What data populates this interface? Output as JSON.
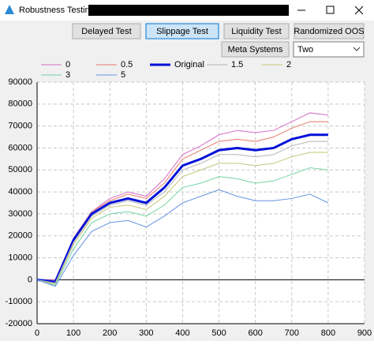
{
  "window": {
    "title": "Robustness Testing -"
  },
  "buttons": [
    "Delayed Test",
    "Slippage Test",
    "Liquidity Test",
    "Randomized OOS",
    "Meta Systems"
  ],
  "dropdown": {
    "value": "Two"
  },
  "chart_data": {
    "type": "line",
    "x": [
      0,
      50,
      100,
      150,
      200,
      250,
      300,
      350,
      400,
      450,
      500,
      550,
      600,
      650,
      700,
      750,
      800
    ],
    "series": [
      {
        "name": "0",
        "color": "#d46cc4",
        "values": [
          0,
          0,
          19000,
          31000,
          37000,
          40000,
          38000,
          46000,
          57000,
          61000,
          66000,
          68000,
          67000,
          68000,
          72000,
          76000,
          75000
        ]
      },
      {
        "name": "0.5",
        "color": "#e4786a",
        "values": [
          0,
          -500,
          18500,
          31000,
          36000,
          39000,
          37000,
          44000,
          55000,
          59000,
          63000,
          64000,
          63000,
          65000,
          69000,
          72000,
          72000
        ]
      },
      {
        "name": "Original",
        "color": "#0010d8",
        "values": [
          0,
          -1000,
          18000,
          30000,
          35000,
          37000,
          35000,
          42000,
          52000,
          55000,
          59000,
          60000,
          59000,
          60000,
          64000,
          66000,
          66000
        ]
      },
      {
        "name": "1.5",
        "color": "#b4b4b4",
        "values": [
          0,
          -1500,
          17000,
          29000,
          34000,
          36000,
          34000,
          40000,
          50000,
          53000,
          57000,
          57000,
          56000,
          57000,
          61000,
          63000,
          63000
        ]
      },
      {
        "name": "2",
        "color": "#c4c47a",
        "values": [
          0,
          -2000,
          16000,
          28000,
          33000,
          34000,
          32000,
          38000,
          47000,
          50000,
          53000,
          53000,
          52000,
          53000,
          56000,
          58000,
          58000
        ]
      },
      {
        "name": "3",
        "color": "#74d4a4",
        "values": [
          0,
          -2500,
          14000,
          26000,
          30000,
          31000,
          29000,
          34000,
          42000,
          44000,
          47000,
          46000,
          44000,
          45000,
          48000,
          51000,
          50000
        ]
      },
      {
        "name": "5",
        "color": "#6494e4",
        "values": [
          0,
          -3000,
          11000,
          22000,
          26000,
          27000,
          24000,
          29000,
          35000,
          38000,
          41000,
          38000,
          36000,
          36000,
          37000,
          39000,
          35000
        ]
      }
    ],
    "xlim": [
      0,
      900
    ],
    "xticks": [
      0,
      100,
      200,
      300,
      400,
      500,
      600,
      700,
      800,
      900
    ],
    "ylim": [
      -20000,
      90000
    ],
    "yticks": [
      -20000,
      -10000,
      0,
      10000,
      20000,
      30000,
      40000,
      50000,
      60000,
      70000,
      80000,
      90000
    ],
    "grid": true
  }
}
